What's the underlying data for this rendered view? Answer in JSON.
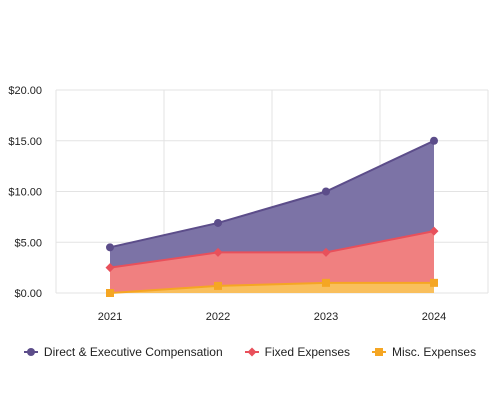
{
  "chart_data": {
    "type": "area",
    "stacked": true,
    "categories": [
      "2021",
      "2022",
      "2023",
      "2024"
    ],
    "y_ticks": [
      "$0.00",
      "$5.00",
      "$10.00",
      "$15.00",
      "$20.00"
    ],
    "ylim": [
      0,
      20
    ],
    "grid": true,
    "legend_position": "bottom",
    "series": [
      {
        "name": "Misc. Expenses",
        "values": [
          0,
          0.7,
          1.0,
          1.0
        ],
        "color": "#f5a623",
        "fill": "#f9bf5c",
        "marker": "square"
      },
      {
        "name": "Fixed Expenses",
        "values": [
          2.5,
          3.3,
          3.0,
          5.1
        ],
        "color": "#e8505b",
        "fill": "#f08080",
        "marker": "diamond"
      },
      {
        "name": "Direct & Executive Compensation",
        "values": [
          2.0,
          2.9,
          6.0,
          8.9
        ],
        "color": "#5c4d8a",
        "fill": "#7c73a6",
        "marker": "circle"
      }
    ]
  },
  "legend": [
    {
      "label": "Direct & Executive Compensation",
      "color": "#5c4d8a",
      "marker": "circle"
    },
    {
      "label": "Fixed Expenses",
      "color": "#e8505b",
      "marker": "diamond"
    },
    {
      "label": "Misc. Expenses",
      "color": "#f5a623",
      "marker": "square"
    }
  ]
}
